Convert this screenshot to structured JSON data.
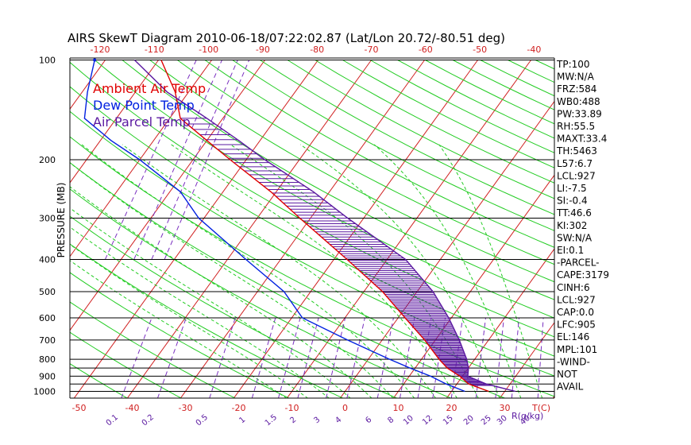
{
  "chart_data": {
    "type": "line",
    "title": "AIRS SkewT Diagram 2010-06-18/07:22:02.87 (Lat/Lon 20.72/-80.51 deg)",
    "ylabel": "PRESSURE (MB)",
    "xlabel": "T(C)",
    "mixing_ratio_unit": "R(g/kg)",
    "y_scale": "log",
    "ylim": [
      1050,
      100
    ],
    "xlim_bottom_deg_c": [
      -50,
      40
    ],
    "pressure_ticks": [
      100,
      200,
      300,
      400,
      500,
      600,
      700,
      800,
      900,
      1000
    ],
    "bottom_temp_ticks": [
      -50,
      -40,
      -30,
      -20,
      -10,
      0,
      10,
      20,
      30
    ],
    "top_temp_ticks": [
      -120,
      -110,
      -100,
      -90,
      -80,
      -70,
      -60,
      -50,
      -40
    ],
    "mixing_ratio_labels": [
      "0.1",
      "0.2",
      "0.5",
      "1",
      "1.5",
      "2",
      "3",
      "4",
      "6",
      "8",
      "10",
      "12",
      "15",
      "20",
      "25",
      "30",
      "40"
    ],
    "grid": true,
    "legend_position": "top-left",
    "legend": [
      {
        "label": "Ambient Air Temp",
        "color": "#e00000"
      },
      {
        "label": "Dew Point Temp",
        "color": "#0020e0"
      },
      {
        "label": "Air Parcel Temp",
        "color": "#5a18a0"
      }
    ],
    "series": [
      {
        "name": "Ambient Air Temp",
        "color": "#e00000",
        "points": [
          [
            1000,
            27.0
          ],
          [
            950,
            22.2
          ],
          [
            900,
            19.5
          ],
          [
            850,
            16.0
          ],
          [
            800,
            13.3
          ],
          [
            700,
            8.0
          ],
          [
            600,
            1.3
          ],
          [
            500,
            -6.5
          ],
          [
            400,
            -17.5
          ],
          [
            300,
            -32.0
          ],
          [
            250,
            -41.0
          ],
          [
            200,
            -53.0
          ],
          [
            175,
            -60.0
          ],
          [
            150,
            -68.0
          ],
          [
            125,
            -72.5
          ],
          [
            100,
            -79.5
          ]
        ]
      },
      {
        "name": "Dew Point Temp",
        "color": "#0020e0",
        "points": [
          [
            1000,
            22.5
          ],
          [
            950,
            18.0
          ],
          [
            900,
            14.0
          ],
          [
            850,
            9.0
          ],
          [
            800,
            4.0
          ],
          [
            700,
            -6.5
          ],
          [
            600,
            -18.0
          ],
          [
            500,
            -25.0
          ],
          [
            400,
            -36.5
          ],
          [
            300,
            -51.0
          ],
          [
            250,
            -58.0
          ],
          [
            200,
            -70.0
          ],
          [
            175,
            -78.0
          ],
          [
            150,
            -86.0
          ],
          [
            125,
            -89.0
          ],
          [
            100,
            -92.0
          ]
        ]
      },
      {
        "name": "Air Parcel Temp",
        "color": "#5a18a0",
        "points": [
          [
            1000,
            32.0
          ],
          [
            950,
            25.5
          ],
          [
            900,
            21.0
          ],
          [
            850,
            20.0
          ],
          [
            800,
            18.5
          ],
          [
            700,
            14.5
          ],
          [
            600,
            9.5
          ],
          [
            500,
            3.0
          ],
          [
            400,
            -6.5
          ],
          [
            300,
            -23.0
          ],
          [
            250,
            -33.0
          ],
          [
            200,
            -46.5
          ],
          [
            175,
            -54.0
          ],
          [
            150,
            -63.0
          ],
          [
            125,
            -74.0
          ],
          [
            100,
            -84.5
          ]
        ]
      }
    ],
    "indices": [
      "TP:100",
      "MW:N/A",
      "FRZ:584",
      "WB0:488",
      "PW:33.89",
      "RH:55.5",
      "MAXT:33.4",
      "TH:5463",
      "L57:6.7",
      "LCL:927",
      "LI:-7.5",
      "SI:-0.4",
      "TT:46.6",
      "KI:302",
      "SW:N/A",
      "EI:0.1",
      "-PARCEL-",
      "CAPE:3179",
      "CINH:6",
      "LCL:927",
      "CAP:0.0",
      "LFC:905",
      "EL:146",
      "MPL:101",
      "-WIND-",
      "NOT",
      "AVAIL"
    ]
  }
}
